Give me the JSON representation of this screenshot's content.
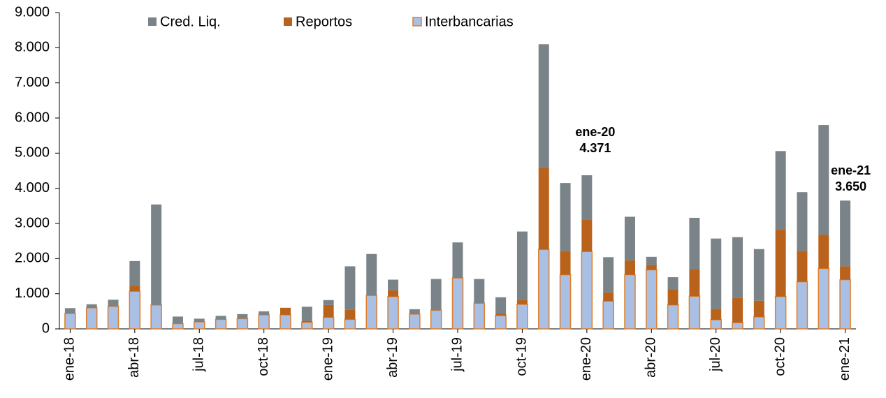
{
  "chart_data": {
    "type": "stacked_bar",
    "categories": [
      "ene-18",
      null,
      null,
      "abr-18",
      null,
      null,
      "jul-18",
      null,
      null,
      "oct-18",
      null,
      null,
      "ene-19",
      null,
      null,
      "abr-19",
      null,
      null,
      "jul-19",
      null,
      null,
      "oct-19",
      null,
      null,
      "ene-20",
      null,
      null,
      "abr-20",
      null,
      null,
      "jul-20",
      null,
      null,
      "oct-20",
      null,
      null,
      "ene-21"
    ],
    "series": [
      {
        "name": "Interbancarias",
        "color": "#a9bfe4",
        "edge": "#e07f2c",
        "values": [
          440,
          600,
          640,
          1070,
          680,
          150,
          200,
          270,
          290,
          400,
          400,
          190,
          330,
          270,
          950,
          920,
          420,
          530,
          1450,
          730,
          380,
          700,
          2260,
          1540,
          2200,
          790,
          1540,
          1680,
          680,
          930,
          260,
          180,
          340,
          920,
          1340,
          1720,
          1400
        ]
      },
      {
        "name": "Reportos",
        "color": "#b8621b",
        "values": [
          0,
          0,
          0,
          160,
          0,
          0,
          0,
          0,
          0,
          0,
          200,
          40,
          350,
          280,
          0,
          180,
          0,
          0,
          0,
          0,
          70,
          130,
          2320,
          680,
          900,
          250,
          410,
          140,
          450,
          770,
          310,
          700,
          460,
          1900,
          880,
          960,
          380
        ]
      },
      {
        "name": "Cred. Liq.",
        "color": "#7a8388",
        "values": [
          150,
          100,
          190,
          700,
          2860,
          200,
          90,
          100,
          130,
          100,
          0,
          400,
          140,
          1230,
          1180,
          300,
          140,
          890,
          1010,
          690,
          450,
          1940,
          3520,
          1930,
          1271,
          1000,
          1240,
          230,
          340,
          1460,
          2000,
          1730,
          1470,
          2240,
          1670,
          3120,
          1870
        ]
      }
    ],
    "ylim": [
      0,
      9000
    ],
    "yticks": [
      0,
      {
        "value": 1000,
        "label": "1.000"
      },
      {
        "value": 2000,
        "label": "2.000"
      },
      {
        "value": 3000,
        "label": "3.000"
      },
      {
        "value": 4000,
        "label": "4.000"
      },
      {
        "value": 5000,
        "label": "5.000"
      },
      {
        "value": 6000,
        "label": "6.000"
      },
      {
        "value": 7000,
        "label": "7.000"
      },
      {
        "value": 8000,
        "label": "8.000"
      },
      {
        "value": 9000,
        "label": "9.000"
      }
    ],
    "annotations": [
      {
        "index": 24,
        "lines": [
          "ene-20",
          "4.371"
        ]
      },
      {
        "index": 36,
        "lines": [
          "ene-21",
          "3.650"
        ]
      }
    ],
    "legend": "top"
  }
}
